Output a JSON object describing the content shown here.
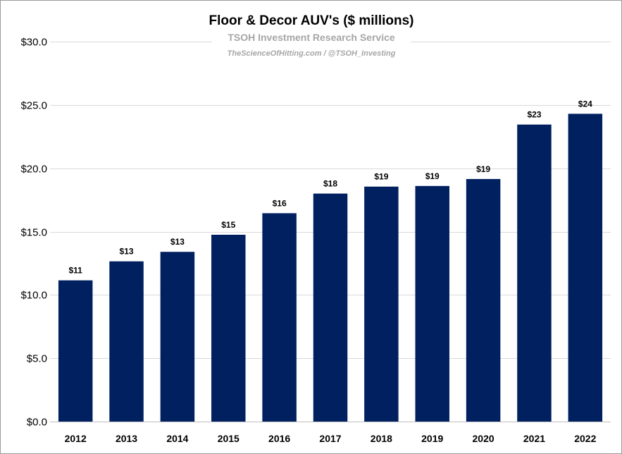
{
  "chart_data": {
    "type": "bar",
    "title": "Floor & Decor AUV's ($ millions)",
    "subtitle": "TSOH Investment Research Service",
    "source_note": "TheScienceOfHitting.com / @TSOH_Investing",
    "categories": [
      "2012",
      "2013",
      "2014",
      "2015",
      "2016",
      "2017",
      "2018",
      "2019",
      "2020",
      "2021",
      "2022"
    ],
    "values": [
      11.15,
      12.65,
      13.4,
      14.75,
      16.45,
      18.0,
      18.55,
      18.6,
      19.15,
      23.45,
      24.3
    ],
    "data_labels": [
      "$11",
      "$13",
      "$13",
      "$15",
      "$16",
      "$18",
      "$19",
      "$19",
      "$19",
      "$23",
      "$24"
    ],
    "ylim": [
      0,
      30
    ],
    "yticks": [
      0,
      5,
      10,
      15,
      20,
      25,
      30
    ],
    "ytick_labels": [
      "$0.0",
      "$5.0",
      "$10.0",
      "$15.0",
      "$20.0",
      "$25.0",
      "$30.0"
    ],
    "bar_color": "#002060",
    "grid": true,
    "legend": "none"
  }
}
